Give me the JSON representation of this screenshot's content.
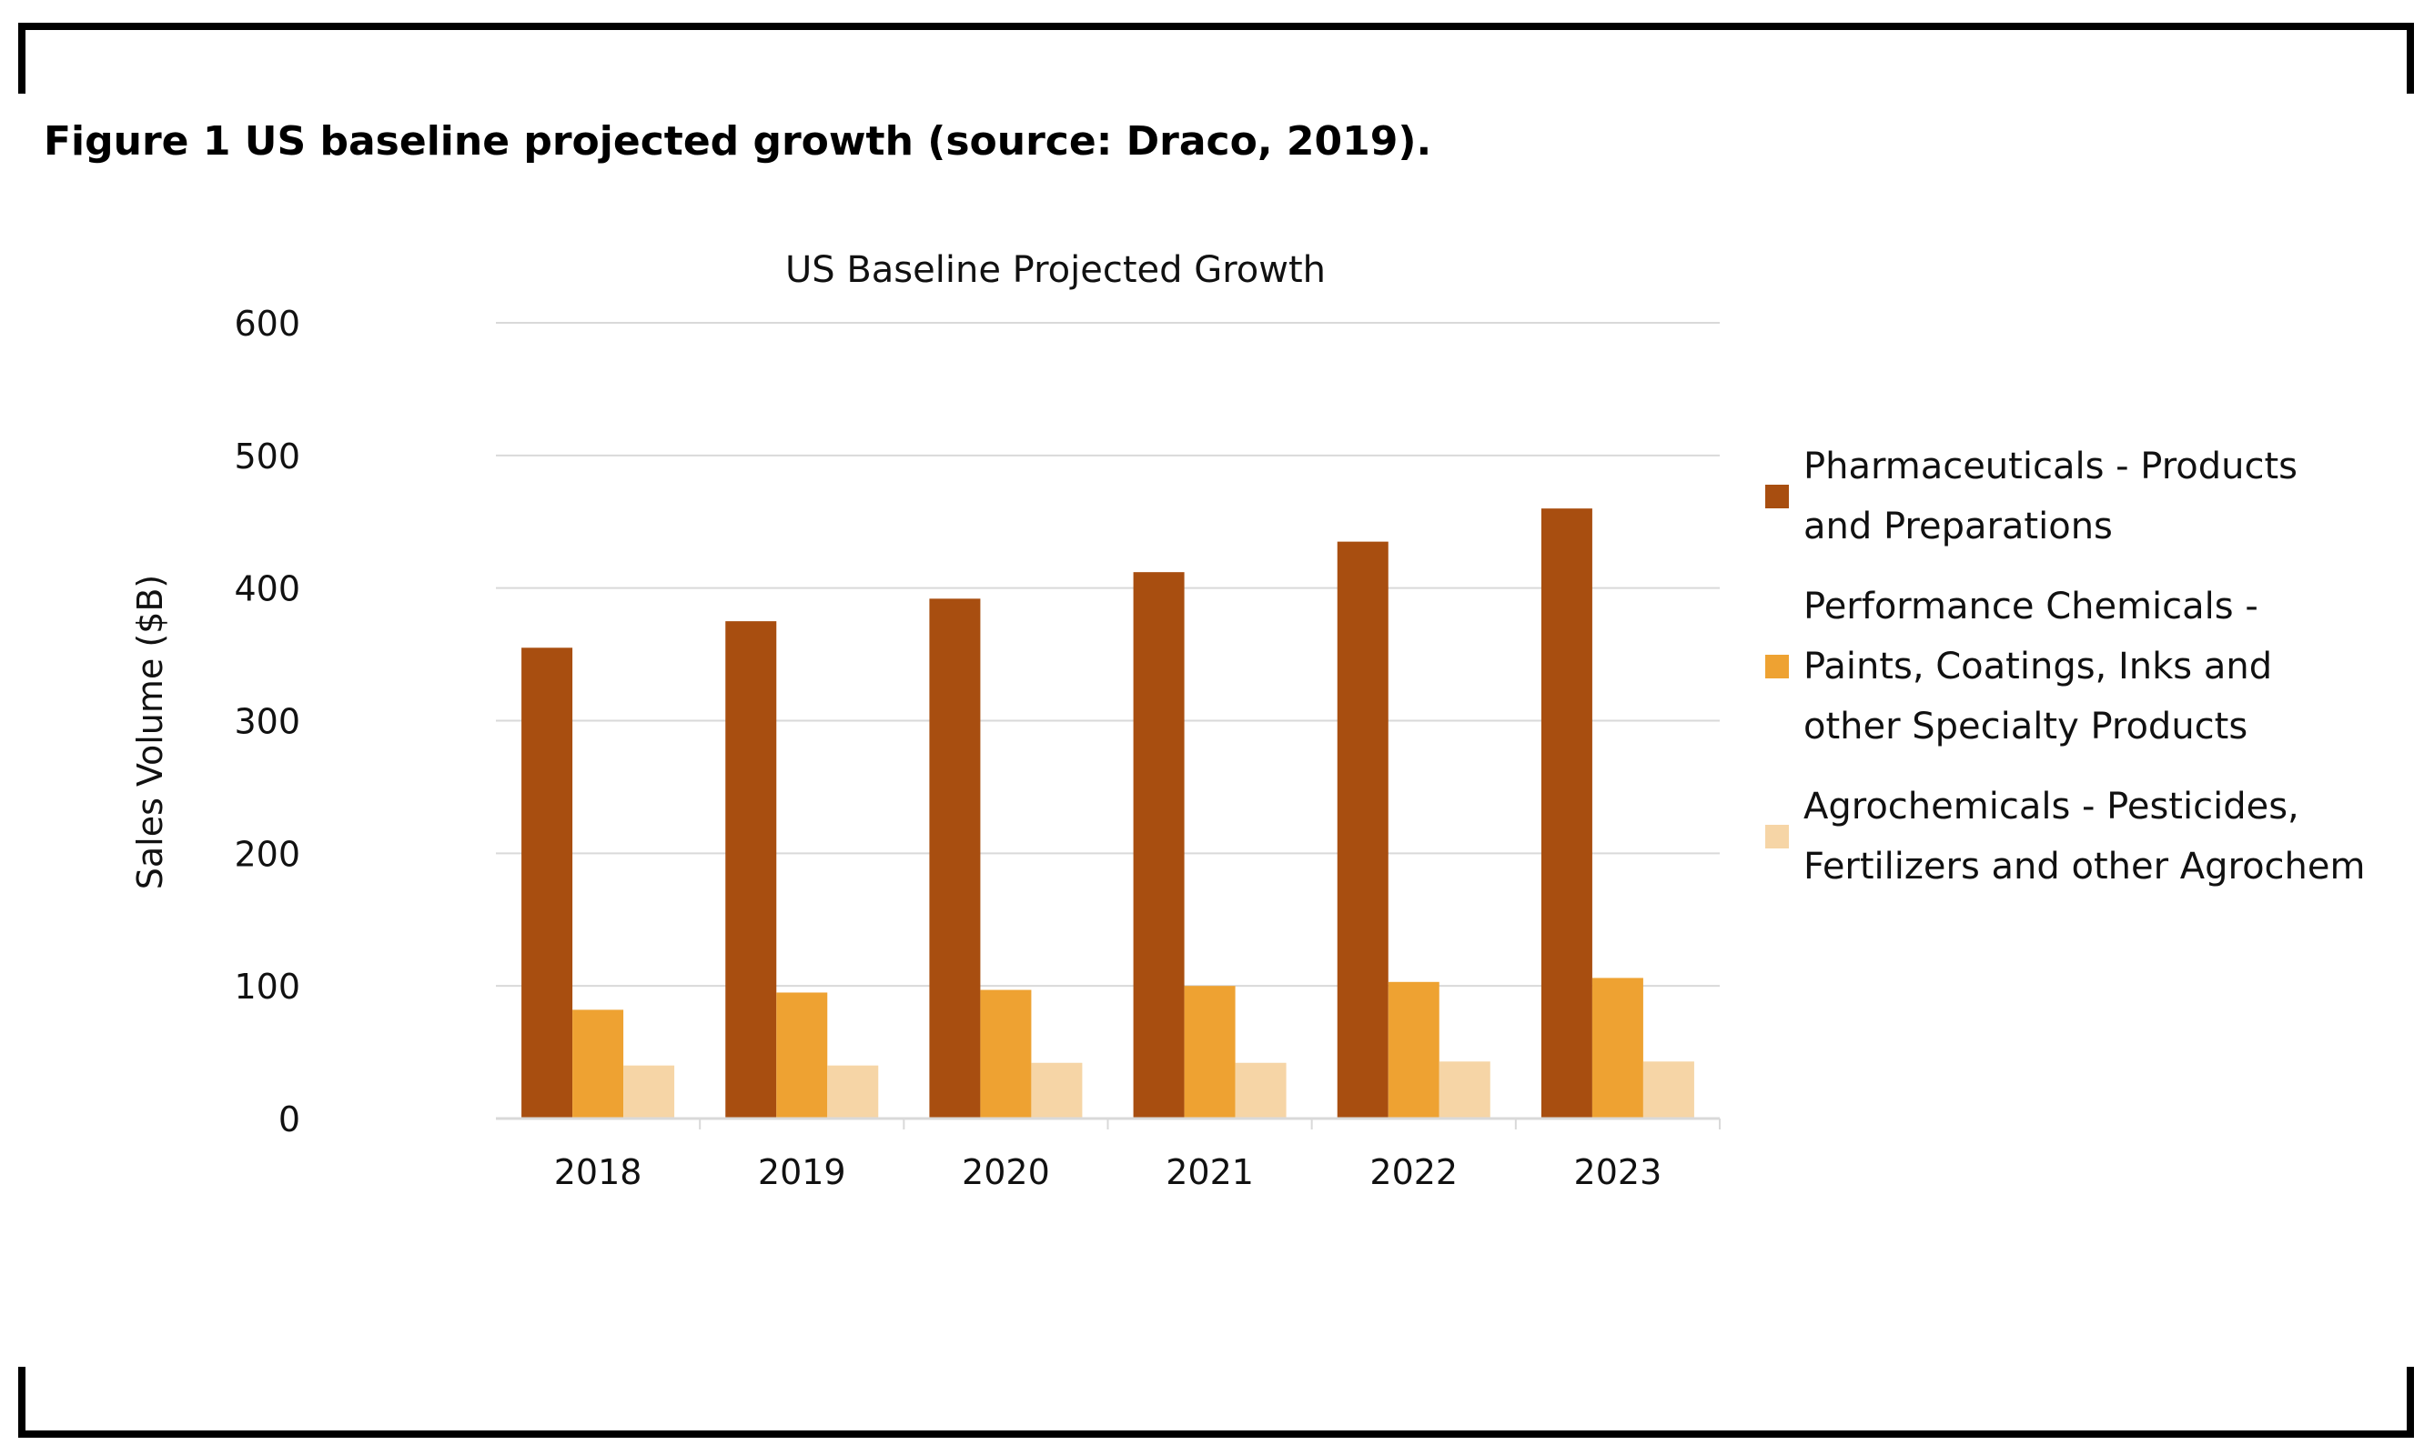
{
  "caption": "Figure 1 US baseline projected growth (source: Draco, 2019).",
  "colors": {
    "series": [
      "#a84e10",
      "#eea232",
      "#f6d5a6"
    ],
    "grid": "#d9d9d9",
    "axis": "#d9d9d9"
  },
  "chart_data": {
    "type": "bar",
    "title": "US Baseline Projected Growth",
    "xlabel": "",
    "ylabel": "Sales Volume ($B)",
    "ylim": [
      0,
      600
    ],
    "yticks": [
      0,
      100,
      200,
      300,
      400,
      500,
      600
    ],
    "grid": true,
    "legend_position": "right",
    "categories": [
      "2018",
      "2019",
      "2020",
      "2021",
      "2022",
      "2023"
    ],
    "series": [
      {
        "name": "Pharmaceuticals - Products\nand Preparations",
        "values": [
          355,
          375,
          392,
          412,
          435,
          460
        ]
      },
      {
        "name": "Performance Chemicals -\nPaints, Coatings, Inks and\nother Specialty Products",
        "values": [
          82,
          95,
          97,
          100,
          103,
          106
        ]
      },
      {
        "name": "Agrochemicals - Pesticides,\nFertilizers and other Agrochem",
        "values": [
          40,
          40,
          42,
          42,
          43,
          43
        ]
      }
    ]
  }
}
